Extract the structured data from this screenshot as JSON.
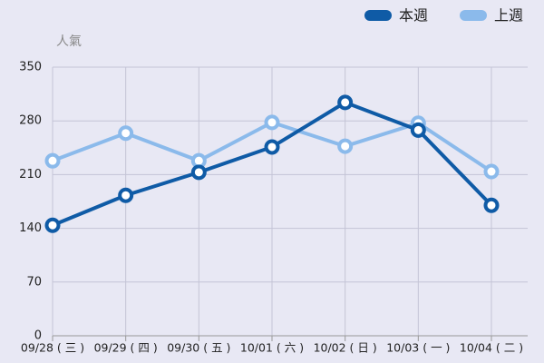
{
  "chart_data": {
    "type": "line",
    "y_label": "人氣",
    "categories": [
      "09/28 ( 三 )",
      "09/29 ( 四 )",
      "09/30 ( 五 )",
      "10/01 ( 六 )",
      "10/02 ( 日 )",
      "10/03 ( 一 )",
      "10/04 ( 二 )"
    ],
    "series": [
      {
        "name": "本週",
        "color": "#0f5ba6",
        "values": [
          144,
          183,
          213,
          246,
          304,
          268,
          170
        ]
      },
      {
        "name": "上週",
        "color": "#8bbaeb",
        "values": [
          228,
          264,
          228,
          278,
          247,
          277,
          214
        ]
      }
    ],
    "ylim": [
      0,
      350
    ],
    "yticks": [
      0,
      70,
      140,
      210,
      280,
      350
    ],
    "grid": true,
    "legend": "top-right"
  }
}
